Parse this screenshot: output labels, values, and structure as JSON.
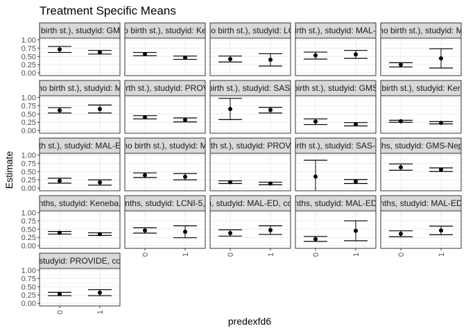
{
  "chart_data": {
    "type": "scatter",
    "title": "Treatment Specific Means",
    "xlabel": "predexfd6",
    "ylabel": "Estimate",
    "categories": [
      "0",
      "1"
    ],
    "ylim": [
      -0.08,
      1.05
    ],
    "yticks": [
      "0.00",
      "0.25",
      "0.50",
      "0.75",
      "1.00"
    ],
    "grid": true,
    "legend": "none",
    "colors": {
      "panel_border": "#333333",
      "strip_fill": "#d9d9d9",
      "grid_major": "#ebebeb",
      "grid_minor": "#f5f5f5",
      "point": "#000000"
    },
    "panels": [
      {
        "label": "h birth st.), studyid: GMS",
        "points": [
          {
            "x": "0",
            "estimate": 0.71,
            "lower": 0.62,
            "upper": 0.8
          },
          {
            "x": "1",
            "estimate": 0.62,
            "lower": 0.57,
            "upper": 0.68
          }
        ]
      },
      {
        "label": "o birth st.), studyid: Ke",
        "points": [
          {
            "x": "0",
            "estimate": 0.57,
            "lower": 0.52,
            "upper": 0.62
          },
          {
            "x": "1",
            "estimate": 0.46,
            "lower": 0.41,
            "upper": 0.51
          }
        ]
      },
      {
        "label": "no birth st.), studyid: LC",
        "points": [
          {
            "x": "0",
            "estimate": 0.42,
            "lower": 0.33,
            "upper": 0.51
          },
          {
            "x": "1",
            "estimate": 0.4,
            "lower": 0.21,
            "upper": 0.58
          }
        ]
      },
      {
        "label": "birth st.), studyid: MAL-E",
        "points": [
          {
            "x": "0",
            "estimate": 0.53,
            "lower": 0.42,
            "upper": 0.63
          },
          {
            "x": "1",
            "estimate": 0.56,
            "lower": 0.44,
            "upper": 0.68
          }
        ]
      },
      {
        "label": "no birth st.), studyid: M",
        "points": [
          {
            "x": "0",
            "estimate": 0.25,
            "lower": 0.18,
            "upper": 0.31
          },
          {
            "x": "1",
            "estimate": 0.44,
            "lower": 0.15,
            "upper": 0.73
          }
        ]
      },
      {
        "label": "no birth st.), studyid: M",
        "points": [
          {
            "x": "0",
            "estimate": 0.61,
            "lower": 0.53,
            "upper": 0.69
          },
          {
            "x": "1",
            "estimate": 0.65,
            "lower": 0.53,
            "upper": 0.77
          }
        ]
      },
      {
        "label": "birth st.), studyid: PROVI",
        "points": [
          {
            "x": "0",
            "estimate": 0.4,
            "lower": 0.35,
            "upper": 0.45
          },
          {
            "x": "1",
            "estimate": 0.32,
            "lower": 0.26,
            "upper": 0.38
          }
        ]
      },
      {
        "label": "birth st.), studyid: SAS-",
        "points": [
          {
            "x": "0",
            "estimate": 0.65,
            "lower": 0.33,
            "upper": 0.97
          },
          {
            "x": "1",
            "estimate": 0.62,
            "lower": 0.53,
            "upper": 0.7
          }
        ]
      },
      {
        "label": "birth st.), studyid: GMS",
        "points": [
          {
            "x": "0",
            "estimate": 0.27,
            "lower": 0.18,
            "upper": 0.35
          },
          {
            "x": "1",
            "estimate": 0.19,
            "lower": 0.14,
            "upper": 0.24
          }
        ]
      },
      {
        "label": "birth st.), studyid: Ker",
        "points": [
          {
            "x": "0",
            "estimate": 0.28,
            "lower": 0.25,
            "upper": 0.31
          },
          {
            "x": "1",
            "estimate": 0.23,
            "lower": 0.2,
            "upper": 0.27
          }
        ]
      },
      {
        "label": "th st.), studyid: MAL-E",
        "points": [
          {
            "x": "0",
            "estimate": 0.22,
            "lower": 0.15,
            "upper": 0.3
          },
          {
            "x": "1",
            "estimate": 0.17,
            "lower": 0.09,
            "upper": 0.25
          }
        ]
      },
      {
        "label": "no birth st.), studyid: M",
        "points": [
          {
            "x": "0",
            "estimate": 0.39,
            "lower": 0.32,
            "upper": 0.46
          },
          {
            "x": "1",
            "estimate": 0.34,
            "lower": 0.25,
            "upper": 0.44
          }
        ]
      },
      {
        "label": "birth st.), studyid: PROVID",
        "points": [
          {
            "x": "0",
            "estimate": 0.18,
            "lower": 0.14,
            "upper": 0.22
          },
          {
            "x": "1",
            "estimate": 0.14,
            "lower": 0.1,
            "upper": 0.18
          }
        ]
      },
      {
        "label": "birth st.), studyid: SAS-C",
        "points": [
          {
            "x": "0",
            "estimate": 0.35,
            "lower": -0.12,
            "upper": 0.84
          },
          {
            "x": "1",
            "estimate": 0.2,
            "lower": 0.14,
            "upper": 0.26
          }
        ]
      },
      {
        "label": "ths, studyid: GMS-Nep",
        "points": [
          {
            "x": "0",
            "estimate": 0.63,
            "lower": 0.54,
            "upper": 0.73
          },
          {
            "x": "1",
            "estimate": 0.56,
            "lower": 0.5,
            "upper": 0.61
          }
        ]
      },
      {
        "label": "nths, studyid: Keneba,",
        "points": [
          {
            "x": "0",
            "estimate": 0.39,
            "lower": 0.35,
            "upper": 0.43
          },
          {
            "x": "1",
            "estimate": 0.35,
            "lower": 0.31,
            "upper": 0.39
          }
        ]
      },
      {
        "label": "nths, studyid: LCNI-5,",
        "points": [
          {
            "x": "0",
            "estimate": 0.46,
            "lower": 0.38,
            "upper": 0.54
          },
          {
            "x": "1",
            "estimate": 0.42,
            "lower": 0.24,
            "upper": 0.6
          }
        ]
      },
      {
        "label": "), studyid: MAL-ED, co",
        "points": [
          {
            "x": "0",
            "estimate": 0.38,
            "lower": 0.29,
            "upper": 0.48
          },
          {
            "x": "1",
            "estimate": 0.47,
            "lower": 0.34,
            "upper": 0.6
          }
        ]
      },
      {
        "label": "nths, studyid: MAL-ED",
        "points": [
          {
            "x": "0",
            "estimate": 0.2,
            "lower": 0.13,
            "upper": 0.28
          },
          {
            "x": "1",
            "estimate": 0.45,
            "lower": 0.15,
            "upper": 0.75
          }
        ]
      },
      {
        "label": "nths, studyid: MAL-ED",
        "points": [
          {
            "x": "0",
            "estimate": 0.36,
            "lower": 0.27,
            "upper": 0.45
          },
          {
            "x": "1",
            "estimate": 0.46,
            "lower": 0.33,
            "upper": 0.59
          }
        ]
      },
      {
        "label": "studyid: PROVIDE, co",
        "points": [
          {
            "x": "0",
            "estimate": 0.28,
            "lower": 0.23,
            "upper": 0.33
          },
          {
            "x": "1",
            "estimate": 0.32,
            "lower": 0.23,
            "upper": 0.41
          }
        ]
      }
    ]
  }
}
